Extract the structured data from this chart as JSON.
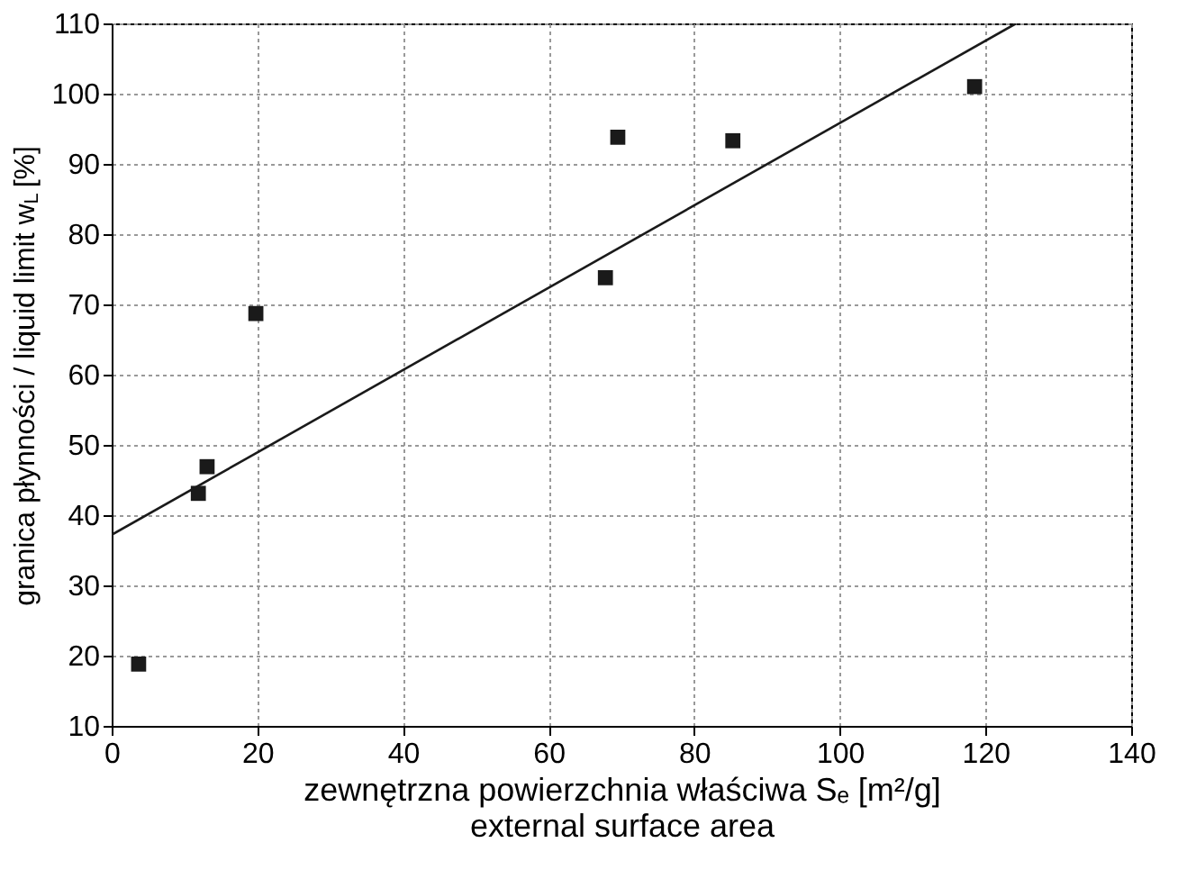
{
  "chart_data": {
    "type": "scatter",
    "xlabel": "zewnętrzna powierzchnia właściwa Sₑ [m²/g]\nexternal surface area",
    "ylabel": "granica płynności / liquid limit w$_{L}$ [%]",
    "xlim": [
      0,
      140
    ],
    "xticks": [
      0,
      20,
      40,
      60,
      80,
      100,
      120,
      140
    ],
    "ylim": [
      10,
      110
    ],
    "yticks": [
      10,
      20,
      30,
      40,
      50,
      60,
      70,
      80,
      90,
      100,
      110
    ],
    "grid": true,
    "series": [
      {
        "marker": "square",
        "color": "#1a1a1a",
        "x": [
          3.7,
          11.9,
          13.1,
          19.8,
          67.8,
          69.5,
          85.3,
          118.5
        ],
        "values": [
          18.8,
          43.1,
          46.9,
          68.7,
          73.8,
          93.8,
          93.3,
          101
        ]
      },
      {
        "type": "line",
        "marker": "none",
        "color": "#1a1a1a",
        "line_style": "solid",
        "x": [
          0,
          124.2
        ],
        "values": [
          37.2,
          110
        ]
      }
    ]
  }
}
